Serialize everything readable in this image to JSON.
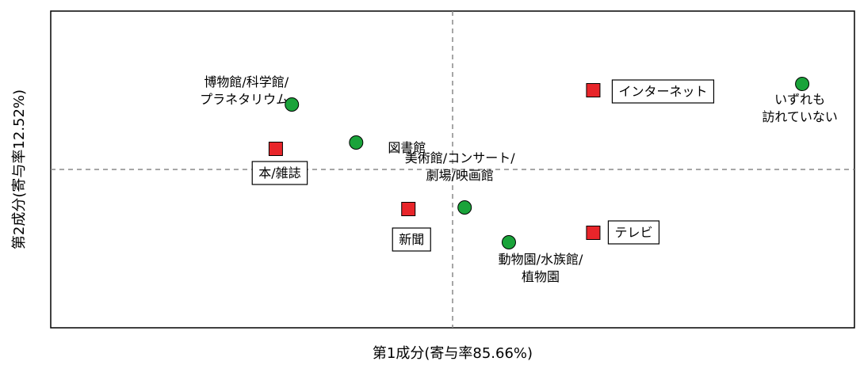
{
  "chart_data": {
    "type": "scatter",
    "xlabel": "第1成分(寄与率85.66%)",
    "ylabel": "第2成分(寄与率12.52%)",
    "grid": false,
    "reference_lines": {
      "x": 0,
      "y": 0
    },
    "xlim": [
      -1.0,
      1.0
    ],
    "ylim": [
      -1.0,
      1.0
    ],
    "series": [
      {
        "marker": "circle",
        "color": "#1aa33a",
        "points": [
          {
            "label": "博物館/科学館/\nプラネタリウム",
            "x": -0.4,
            "y": 0.41
          },
          {
            "label": "図書館",
            "x": -0.24,
            "y": 0.17
          },
          {
            "label": "美術館/コンサート/\n劇場/映画館",
            "x": 0.03,
            "y": -0.24
          },
          {
            "label": "動物園/水族館/\n植物園",
            "x": 0.14,
            "y": -0.46
          },
          {
            "label": "いずれも\n訪れていない",
            "x": 0.87,
            "y": 0.54
          }
        ]
      },
      {
        "marker": "square",
        "color": "#e8252a",
        "points": [
          {
            "label": "本/雑誌",
            "x": -0.44,
            "y": 0.13
          },
          {
            "label": "新聞",
            "x": -0.11,
            "y": -0.25
          },
          {
            "label": "インターネット",
            "x": 0.35,
            "y": 0.5
          },
          {
            "label": "テレビ",
            "x": 0.35,
            "y": -0.4
          }
        ]
      }
    ]
  }
}
